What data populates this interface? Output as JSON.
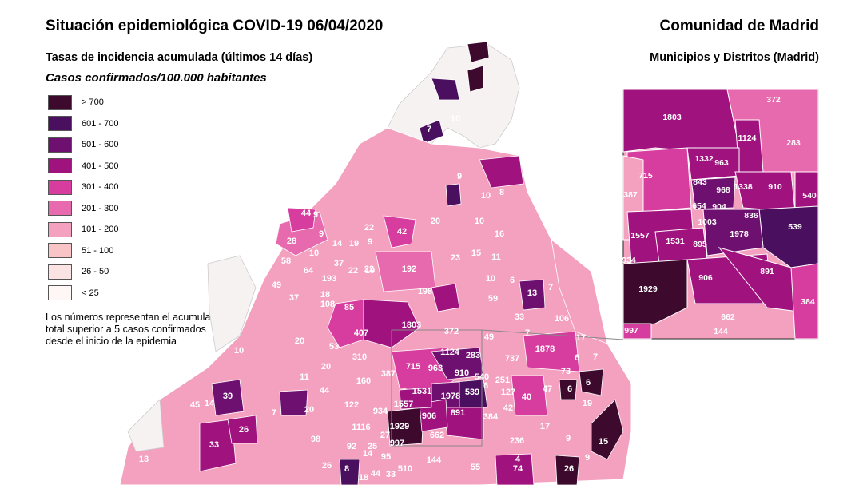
{
  "title": "Situación epidemiológica COVID-19  06/04/2020",
  "region": "Comunidad de Madrid",
  "subtitle": "Tasas de incidencia acumulada (últimos 14 días)",
  "subtitle_right": "Municipios y Distritos (Madrid)",
  "units": "Casos confirmados/100.000 habitantes",
  "legend": [
    {
      "label": "> 700",
      "color": "#3d0a2e"
    },
    {
      "label": "601 - 700",
      "color": "#4a0f5e"
    },
    {
      "label": "501 - 600",
      "color": "#6e1070"
    },
    {
      "label": "401 - 500",
      "color": "#a0127e"
    },
    {
      "label": "301 - 400",
      "color": "#d63d9e"
    },
    {
      "label": "201 - 300",
      "color": "#e86aae"
    },
    {
      "label": "101 - 200",
      "color": "#f3a1bf"
    },
    {
      "label": "51 - 100",
      "color": "#f8c4c6"
    },
    {
      "label": "26 - 50",
      "color": "#fbe3e3"
    },
    {
      "label": "< 25",
      "color": "#fff6f6"
    }
  ],
  "note": "Los números representan el acumulado total superior a 5 casos confirmados desde el inicio de la epidemia",
  "map_labels": [
    "10",
    "7",
    "10",
    "8",
    "9",
    "9",
    "22",
    "42",
    "20",
    "10",
    "16",
    "44",
    "28",
    "9",
    "14",
    "19",
    "22",
    "9",
    "58",
    "10",
    "64",
    "37",
    "193",
    "22",
    "19",
    "192",
    "23",
    "15",
    "11",
    "49",
    "37",
    "18",
    "108",
    "85",
    "198",
    "10",
    "6",
    "59",
    "13",
    "7",
    "33",
    "106",
    "20",
    "407",
    "1803",
    "372",
    "7",
    "49",
    "17",
    "1878",
    "10",
    "53",
    "310",
    "715",
    "963",
    "1124",
    "283",
    "6",
    "7",
    "20",
    "387",
    "160",
    "910",
    "540",
    "251",
    "737",
    "11",
    "44",
    "73",
    "6",
    "6",
    "39",
    "45",
    "14",
    "7",
    "20",
    "122",
    "1531",
    "1978",
    "539",
    "127",
    "40",
    "47",
    "19",
    "934",
    "1557",
    "891",
    "42",
    "17",
    "26",
    "1116",
    "1929",
    "906",
    "384",
    "236",
    "98",
    "33",
    "662",
    "9",
    "15",
    "13",
    "997",
    "92",
    "14",
    "95",
    "144",
    "55",
    "74",
    "26",
    "9",
    "8",
    "18",
    "510",
    "26",
    "44",
    "33",
    "25",
    "27",
    "6",
    "4"
  ],
  "inset_labels": [
    "372",
    "1803",
    "1124",
    "283",
    "715",
    "1332",
    "963",
    "387",
    "843",
    "968",
    "1338",
    "910",
    "540",
    "654",
    "904",
    "1003",
    "836",
    "539",
    "1557",
    "1531",
    "895",
    "1978",
    "934",
    "906",
    "891",
    "1929",
    "384",
    "662",
    "997",
    "144"
  ]
}
